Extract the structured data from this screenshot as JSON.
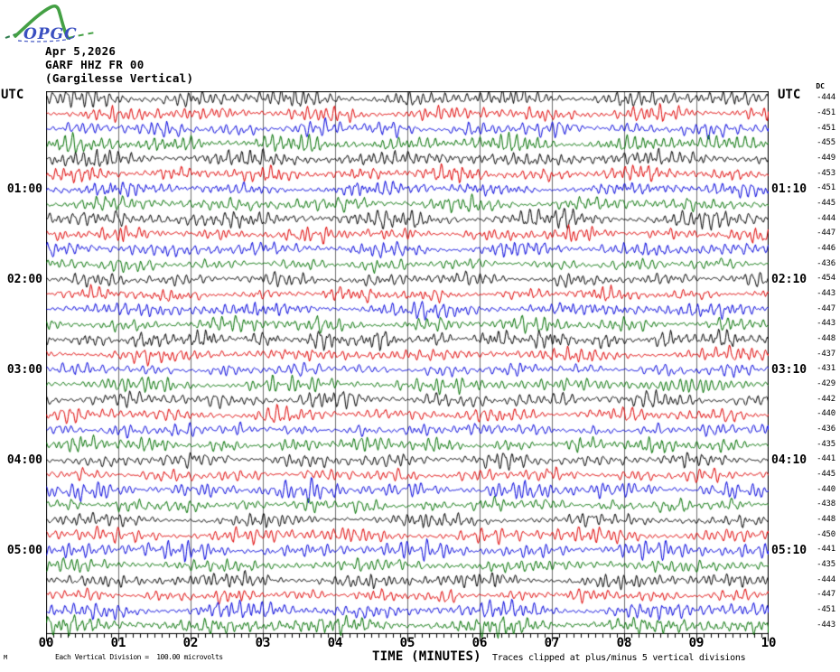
{
  "logo": {
    "text": "OPGC",
    "green": "#44a044",
    "blue": "#3a4fc0"
  },
  "header": {
    "date": "Apr 5,2026",
    "station": "GARF HHZ FR 00",
    "station_name": "(Gargilesse Vertical)"
  },
  "left_axis": {
    "label": "UTC",
    "hour_labels": [
      {
        "row": 7,
        "text": "01:00"
      },
      {
        "row": 13,
        "text": "02:00"
      },
      {
        "row": 19,
        "text": "03:00"
      },
      {
        "row": 25,
        "text": "04:00"
      },
      {
        "row": 31,
        "text": "05:00"
      }
    ]
  },
  "right_axis": {
    "label": "UTC",
    "dc_header": "DC",
    "hour_labels": [
      {
        "row": 7,
        "text": "01:10"
      },
      {
        "row": 13,
        "text": "02:10"
      },
      {
        "row": 19,
        "text": "03:10"
      },
      {
        "row": 25,
        "text": "04:10"
      },
      {
        "row": 31,
        "text": "05:10"
      }
    ]
  },
  "chart_data": {
    "type": "line",
    "variant": "helicorder-seismogram",
    "title": "GARF HHZ FR 00 (Gargilesse Vertical) Apr 5,2026",
    "xlabel": "TIME (MINUTES)",
    "x_tick_labels": [
      "00",
      "01",
      "02",
      "03",
      "04",
      "05",
      "06",
      "07",
      "08",
      "09",
      "10"
    ],
    "x_range_minutes": [
      0,
      10
    ],
    "minutes_per_row": 10,
    "rows_total": 36,
    "minor_ticks_per_minute": 10,
    "grid": "vertical line at each minute",
    "colors": {
      "cycle_names": [
        "black",
        "red",
        "blue",
        "green"
      ],
      "black": "#000000",
      "red": "#e00000",
      "blue": "#0000dd",
      "green": "#007000",
      "grid_line": "#707070",
      "border": "#000000"
    },
    "rows": [
      {
        "start_utc": "00:00",
        "end_utc": "00:10",
        "color": "black",
        "dc": -444
      },
      {
        "start_utc": "00:10",
        "end_utc": "00:20",
        "color": "red",
        "dc": -451
      },
      {
        "start_utc": "00:20",
        "end_utc": "00:30",
        "color": "blue",
        "dc": -451
      },
      {
        "start_utc": "00:30",
        "end_utc": "00:40",
        "color": "green",
        "dc": -455
      },
      {
        "start_utc": "00:40",
        "end_utc": "00:50",
        "color": "black",
        "dc": -449
      },
      {
        "start_utc": "00:50",
        "end_utc": "01:00",
        "color": "red",
        "dc": -453
      },
      {
        "start_utc": "01:00",
        "end_utc": "01:10",
        "color": "blue",
        "dc": -451
      },
      {
        "start_utc": "01:10",
        "end_utc": "01:20",
        "color": "green",
        "dc": -445
      },
      {
        "start_utc": "01:20",
        "end_utc": "01:30",
        "color": "black",
        "dc": -444
      },
      {
        "start_utc": "01:30",
        "end_utc": "01:40",
        "color": "red",
        "dc": -447
      },
      {
        "start_utc": "01:40",
        "end_utc": "01:50",
        "color": "blue",
        "dc": -446
      },
      {
        "start_utc": "01:50",
        "end_utc": "02:00",
        "color": "green",
        "dc": -436
      },
      {
        "start_utc": "02:00",
        "end_utc": "02:10",
        "color": "black",
        "dc": -454
      },
      {
        "start_utc": "02:10",
        "end_utc": "02:20",
        "color": "red",
        "dc": -443
      },
      {
        "start_utc": "02:20",
        "end_utc": "02:30",
        "color": "blue",
        "dc": -447
      },
      {
        "start_utc": "02:30",
        "end_utc": "02:40",
        "color": "green",
        "dc": -443
      },
      {
        "start_utc": "02:40",
        "end_utc": "02:50",
        "color": "black",
        "dc": -448
      },
      {
        "start_utc": "02:50",
        "end_utc": "03:00",
        "color": "red",
        "dc": -437
      },
      {
        "start_utc": "03:00",
        "end_utc": "03:10",
        "color": "blue",
        "dc": -431
      },
      {
        "start_utc": "03:10",
        "end_utc": "03:20",
        "color": "green",
        "dc": -429
      },
      {
        "start_utc": "03:20",
        "end_utc": "03:30",
        "color": "black",
        "dc": -442
      },
      {
        "start_utc": "03:30",
        "end_utc": "03:40",
        "color": "red",
        "dc": -440
      },
      {
        "start_utc": "03:40",
        "end_utc": "03:50",
        "color": "blue",
        "dc": -436
      },
      {
        "start_utc": "03:50",
        "end_utc": "04:00",
        "color": "green",
        "dc": -435
      },
      {
        "start_utc": "04:00",
        "end_utc": "04:10",
        "color": "black",
        "dc": -441
      },
      {
        "start_utc": "04:10",
        "end_utc": "04:20",
        "color": "red",
        "dc": -445
      },
      {
        "start_utc": "04:20",
        "end_utc": "04:30",
        "color": "blue",
        "dc": -440
      },
      {
        "start_utc": "04:30",
        "end_utc": "04:40",
        "color": "green",
        "dc": -438
      },
      {
        "start_utc": "04:40",
        "end_utc": "04:50",
        "color": "black",
        "dc": -448
      },
      {
        "start_utc": "04:50",
        "end_utc": "05:00",
        "color": "red",
        "dc": -450
      },
      {
        "start_utc": "05:00",
        "end_utc": "05:10",
        "color": "blue",
        "dc": -441
      },
      {
        "start_utc": "05:10",
        "end_utc": "05:20",
        "color": "green",
        "dc": -435
      },
      {
        "start_utc": "05:20",
        "end_utc": "05:30",
        "color": "black",
        "dc": -444
      },
      {
        "start_utc": "05:30",
        "end_utc": "05:40",
        "color": "red",
        "dc": -447
      },
      {
        "start_utc": "05:40",
        "end_utc": "05:50",
        "color": "blue",
        "dc": -451
      },
      {
        "start_utc": "05:50",
        "end_utc": "06:00",
        "color": "green",
        "dc": -443
      }
    ]
  },
  "footer": {
    "corner_mark": "M",
    "division_note": "Each Vertical Division =  100.00 microvolts",
    "xlabel": "TIME (MINUTES)",
    "clip_note": "Traces clipped at plus/minus 5 vertical divisions"
  }
}
